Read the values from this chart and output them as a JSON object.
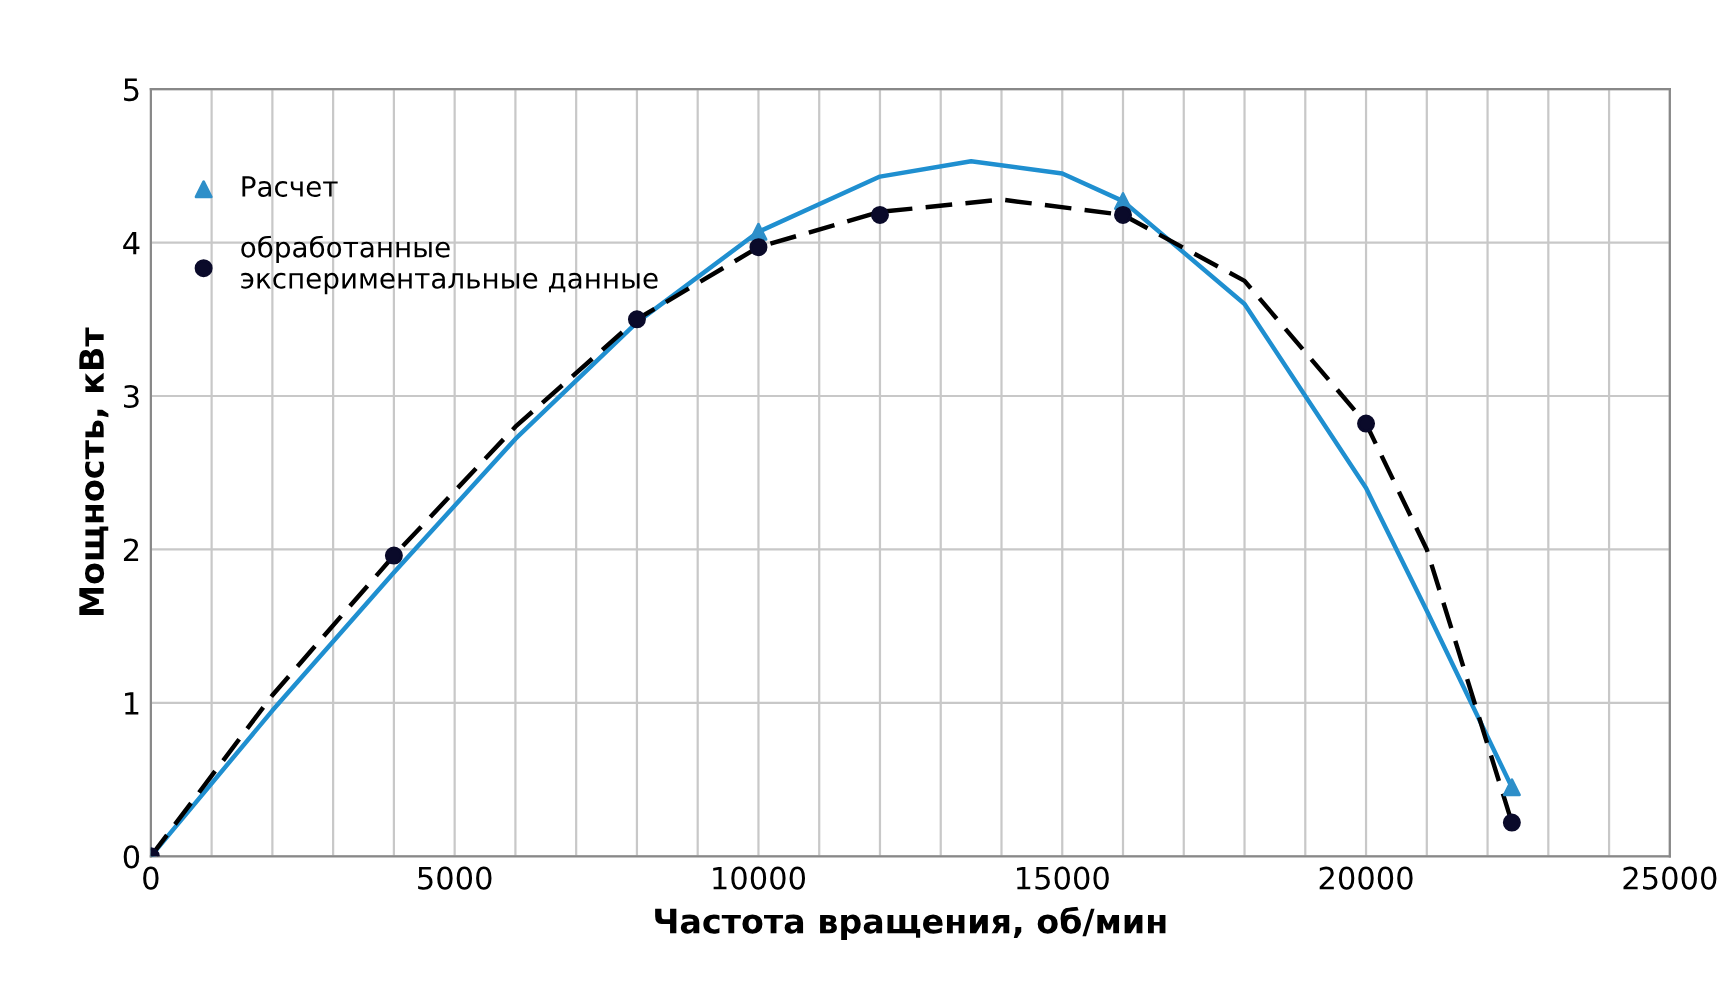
{
  "chart_data": {
    "type": "scatter",
    "xlabel": "Частота вращения, об/мин",
    "ylabel": "Мощность, кВт",
    "xlim": [
      0,
      25000
    ],
    "ylim": [
      0,
      5
    ],
    "xticks": [
      0,
      {
        "value": 1000,
        "label": null
      },
      {
        "value": 2000,
        "label": null
      },
      {
        "value": 3000,
        "label": null
      },
      {
        "value": 4000,
        "label": null
      },
      5000,
      {
        "value": 6000,
        "label": null
      },
      {
        "value": 7000,
        "label": null
      },
      {
        "value": 8000,
        "label": null
      },
      {
        "value": 9000,
        "label": null
      },
      10000,
      {
        "value": 11000,
        "label": null
      },
      {
        "value": 12000,
        "label": null
      },
      {
        "value": 13000,
        "label": null
      },
      {
        "value": 14000,
        "label": null
      },
      15000,
      {
        "value": 16000,
        "label": null
      },
      {
        "value": 17000,
        "label": null
      },
      {
        "value": 18000,
        "label": null
      },
      {
        "value": 19000,
        "label": null
      },
      20000,
      {
        "value": 21000,
        "label": null
      },
      {
        "value": 22000,
        "label": null
      },
      {
        "value": 23000,
        "label": null
      },
      {
        "value": 24000,
        "label": null
      },
      25000
    ],
    "yticks": [
      0,
      1,
      2,
      3,
      4,
      5
    ],
    "grid": true,
    "legend": "top left",
    "series": [
      {
        "type": "line",
        "color": "#1f8fd0",
        "line_style": "solid",
        "marker": "none",
        "x": [
          0,
          2000,
          4000,
          6000,
          8000,
          10000,
          12000,
          13500,
          15000,
          16000,
          18000,
          20000,
          21000,
          22400
        ],
        "values": [
          0,
          0.95,
          1.85,
          2.72,
          3.48,
          4.07,
          4.43,
          4.53,
          4.45,
          4.27,
          3.6,
          2.4,
          1.6,
          0.45
        ]
      },
      {
        "type": "line",
        "color": "#000000",
        "line_style": "dashed",
        "marker": "none",
        "x": [
          0,
          2000,
          4000,
          6000,
          8000,
          10000,
          12000,
          14000,
          16000,
          18000,
          20000,
          21000,
          22400
        ],
        "values": [
          0,
          1.05,
          1.96,
          2.8,
          3.5,
          3.97,
          4.2,
          4.28,
          4.18,
          3.75,
          2.82,
          2.0,
          0.22
        ]
      },
      {
        "name": "Расчет",
        "color": "#2e8fc9",
        "marker": "triangle",
        "x": [
          0,
          10000,
          16000,
          22400
        ],
        "values": [
          0,
          4.07,
          4.27,
          0.45
        ]
      },
      {
        "name": "обработанные\nэкспериментальные данные",
        "color": "#0a0a2a",
        "marker": "circle",
        "x": [
          0,
          4000,
          8000,
          10000,
          12000,
          16000,
          20000,
          22400
        ],
        "values": [
          0,
          1.96,
          3.5,
          3.97,
          4.18,
          4.18,
          2.82,
          0.22
        ]
      }
    ]
  }
}
